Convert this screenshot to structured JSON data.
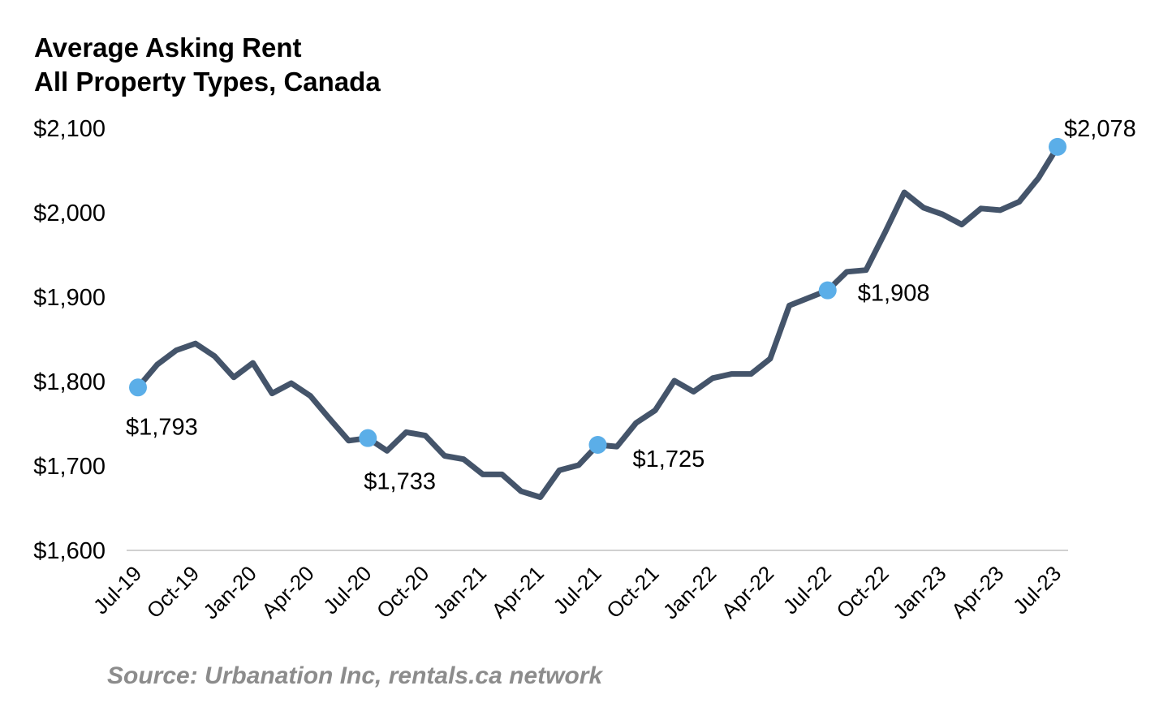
{
  "chart_data": {
    "type": "line",
    "title": "Average Asking Rent",
    "subtitle": "All Property Types, Canada",
    "source": "Source: Urbanation Inc, rentals.ca network",
    "ylim": [
      1600,
      2100
    ],
    "yticks": [
      1600,
      1700,
      1800,
      1900,
      2000,
      2100
    ],
    "ytick_labels": [
      "$1,600",
      "$1,700",
      "$1,800",
      "$1,900",
      "$2,000",
      "$2,100"
    ],
    "xtick_labels": [
      "Jul-19",
      "Oct-19",
      "Jan-20",
      "Apr-20",
      "Jul-20",
      "Oct-20",
      "Jan-21",
      "Apr-21",
      "Jul-21",
      "Oct-21",
      "Jan-22",
      "Apr-22",
      "Jul-22",
      "Oct-22",
      "Jan-23",
      "Apr-23",
      "Jul-23"
    ],
    "grid": false,
    "line_color": "#44546a",
    "marker_color": "#5baee8",
    "series": [
      {
        "x": [
          "Jul-19",
          "Aug-19",
          "Sep-19",
          "Oct-19",
          "Nov-19",
          "Dec-19",
          "Jan-20",
          "Feb-20",
          "Mar-20",
          "Apr-20",
          "May-20",
          "Jun-20",
          "Jul-20",
          "Aug-20",
          "Sep-20",
          "Oct-20",
          "Nov-20",
          "Dec-20",
          "Jan-21",
          "Feb-21",
          "Mar-21",
          "Apr-21",
          "May-21",
          "Jun-21",
          "Jul-21",
          "Aug-21",
          "Sep-21",
          "Oct-21",
          "Nov-21",
          "Dec-21",
          "Jan-22",
          "Feb-22",
          "Mar-22",
          "Apr-22",
          "May-22",
          "Jun-22",
          "Jul-22",
          "Aug-22",
          "Sep-22",
          "Oct-22",
          "Nov-22",
          "Dec-22",
          "Jan-23",
          "Feb-23",
          "Mar-23",
          "Apr-23",
          "May-23",
          "Jun-23",
          "Jul-23"
        ],
        "values": [
          1793,
          1820,
          1837,
          1845,
          1830,
          1805,
          1822,
          1786,
          1798,
          1783,
          1756,
          1730,
          1733,
          1718,
          1740,
          1736,
          1712,
          1708,
          1690,
          1690,
          1670,
          1663,
          1695,
          1701,
          1725,
          1723,
          1751,
          1766,
          1801,
          1788,
          1804,
          1809,
          1809,
          1827,
          1890,
          1899,
          1908,
          1930,
          1932,
          1977,
          2024,
          2006,
          1998,
          1986,
          2005,
          2003,
          2013,
          2041,
          2078
        ]
      }
    ],
    "highlights": [
      {
        "x": "Jul-19",
        "value": 1793,
        "label": "$1,793"
      },
      {
        "x": "Jul-20",
        "value": 1733,
        "label": "$1,733"
      },
      {
        "x": "Jul-21",
        "value": 1725,
        "label": "$1,725"
      },
      {
        "x": "Jul-22",
        "value": 1908,
        "label": "$1,908"
      },
      {
        "x": "Jul-23",
        "value": 2078,
        "label": "$2,078"
      }
    ]
  }
}
